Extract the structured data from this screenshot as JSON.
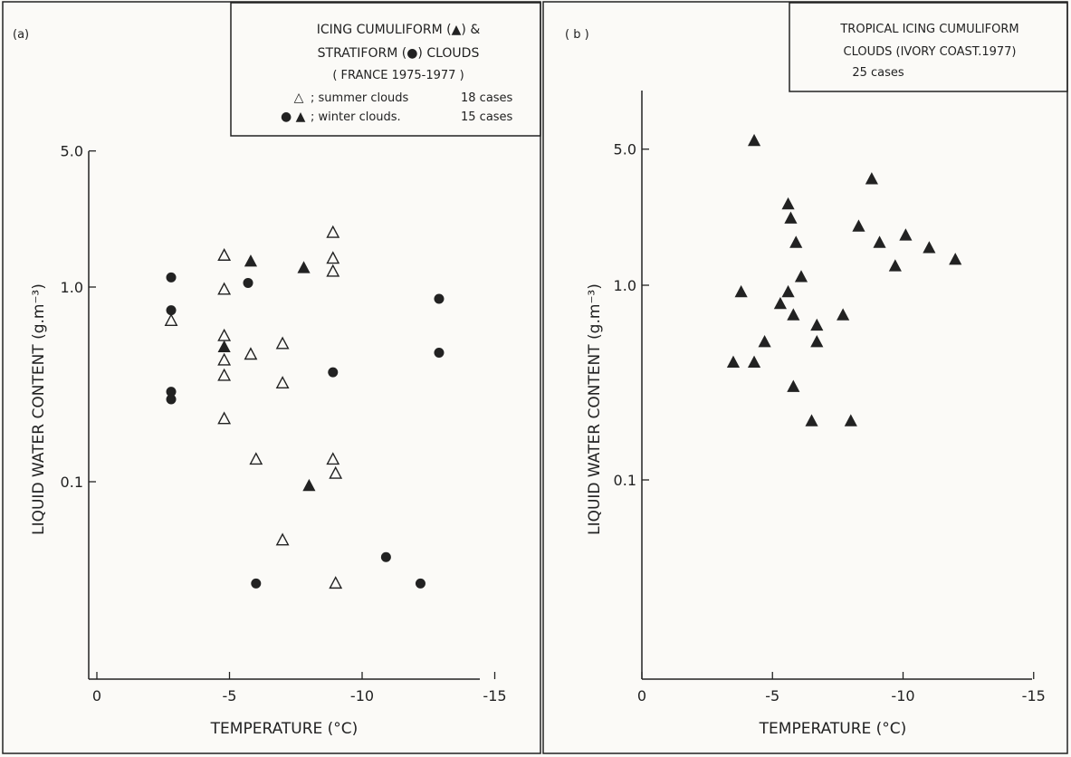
{
  "chart_data": [
    {
      "type": "scatter",
      "panel_label": "(a)",
      "legend": {
        "title_lines": [
          "ICING  CUMULIFORM (▲) &",
          "STRATIFORM (●)  CLOUDS",
          "( FRANCE 1975-1977 )"
        ],
        "entries": [
          {
            "symbols": "△",
            "label": "; summer clouds",
            "count": "18 cases"
          },
          {
            "symbols": "●  ▲",
            "label": "; winter clouds.",
            "count": "15 cases"
          }
        ]
      },
      "xlabel": "TEMPERATURE (°C)",
      "ylabel": "LIQUID WATER CONTENT (g.m⁻³)",
      "x_ticks": [
        "0",
        "-5",
        "-10",
        "-15"
      ],
      "y_ticks": [
        "5.0",
        "1.0",
        "0.1"
      ],
      "xlim": [
        0,
        -15
      ],
      "ylim": [
        0.01,
        5.0
      ],
      "y_scale": "log",
      "series": [
        {
          "name": "summer clouds",
          "marker": "open-triangle",
          "points": [
            {
              "x": -2.8,
              "y": 0.67
            },
            {
              "x": -4.8,
              "y": 1.45
            },
            {
              "x": -4.8,
              "y": 0.97
            },
            {
              "x": -4.8,
              "y": 0.56
            },
            {
              "x": -4.8,
              "y": 0.42
            },
            {
              "x": -4.8,
              "y": 0.35
            },
            {
              "x": -4.8,
              "y": 0.21
            },
            {
              "x": -5.8,
              "y": 0.45
            },
            {
              "x": -6.0,
              "y": 0.13
            },
            {
              "x": -7.0,
              "y": 0.51
            },
            {
              "x": -7.0,
              "y": 0.32
            },
            {
              "x": -7.0,
              "y": 0.05
            },
            {
              "x": -8.9,
              "y": 1.9
            },
            {
              "x": -8.9,
              "y": 1.4
            },
            {
              "x": -8.9,
              "y": 1.2
            },
            {
              "x": -8.9,
              "y": 0.13
            },
            {
              "x": -9.0,
              "y": 0.11
            },
            {
              "x": -9.0,
              "y": 0.03
            }
          ]
        },
        {
          "name": "winter cumuliform",
          "marker": "filled-triangle",
          "points": [
            {
              "x": -4.8,
              "y": 0.49
            },
            {
              "x": -5.8,
              "y": 1.35
            },
            {
              "x": -7.8,
              "y": 1.25
            },
            {
              "x": -8.0,
              "y": 0.095
            }
          ]
        },
        {
          "name": "winter stratiform",
          "marker": "filled-circle",
          "points": [
            {
              "x": -2.8,
              "y": 1.12
            },
            {
              "x": -2.8,
              "y": 0.76
            },
            {
              "x": -2.8,
              "y": 0.29
            },
            {
              "x": -2.8,
              "y": 0.265
            },
            {
              "x": -5.7,
              "y": 1.05
            },
            {
              "x": -6.0,
              "y": 0.03
            },
            {
              "x": -8.9,
              "y": 0.365
            },
            {
              "x": -10.9,
              "y": 0.041
            },
            {
              "x": -12.2,
              "y": 0.03
            },
            {
              "x": -12.9,
              "y": 0.87
            },
            {
              "x": -12.9,
              "y": 0.46
            }
          ]
        }
      ]
    },
    {
      "type": "scatter",
      "panel_label": "( b )",
      "legend": {
        "title_lines": [
          "TROPICAL ICING CUMULIFORM",
          "CLOUDS  (IVORY COAST.1977)",
          "25 cases"
        ],
        "entries": []
      },
      "xlabel": "TEMPERATURE (°C)",
      "ylabel": "LIQUID WATER CONTENT (g.m⁻³)",
      "x_ticks": [
        "0",
        "-5",
        "-10",
        "-15"
      ],
      "y_ticks": [
        "5.0",
        "1.0",
        "0.1"
      ],
      "xlim": [
        0,
        -15
      ],
      "ylim": [
        0.01,
        5.0
      ],
      "y_scale": "log",
      "series": [
        {
          "name": "tropical cumuliform",
          "marker": "filled-triangle",
          "points": [
            {
              "x": -4.3,
              "y": 5.5
            },
            {
              "x": -8.8,
              "y": 3.5
            },
            {
              "x": -5.6,
              "y": 2.6
            },
            {
              "x": -5.7,
              "y": 2.2
            },
            {
              "x": -8.3,
              "y": 2.0
            },
            {
              "x": -10.1,
              "y": 1.8
            },
            {
              "x": -5.9,
              "y": 1.65
            },
            {
              "x": -9.1,
              "y": 1.65
            },
            {
              "x": -11.0,
              "y": 1.55
            },
            {
              "x": -12.0,
              "y": 1.35
            },
            {
              "x": -9.7,
              "y": 1.25
            },
            {
              "x": -6.1,
              "y": 1.1
            },
            {
              "x": -3.8,
              "y": 0.92
            },
            {
              "x": -5.6,
              "y": 0.92
            },
            {
              "x": -5.3,
              "y": 0.8
            },
            {
              "x": -5.8,
              "y": 0.7
            },
            {
              "x": -7.7,
              "y": 0.7
            },
            {
              "x": -6.7,
              "y": 0.62
            },
            {
              "x": -4.7,
              "y": 0.51
            },
            {
              "x": -6.7,
              "y": 0.51
            },
            {
              "x": -3.5,
              "y": 0.4
            },
            {
              "x": -4.3,
              "y": 0.4
            },
            {
              "x": -5.8,
              "y": 0.3
            },
            {
              "x": -6.5,
              "y": 0.2
            },
            {
              "x": -8.0,
              "y": 0.2
            }
          ]
        }
      ]
    }
  ]
}
